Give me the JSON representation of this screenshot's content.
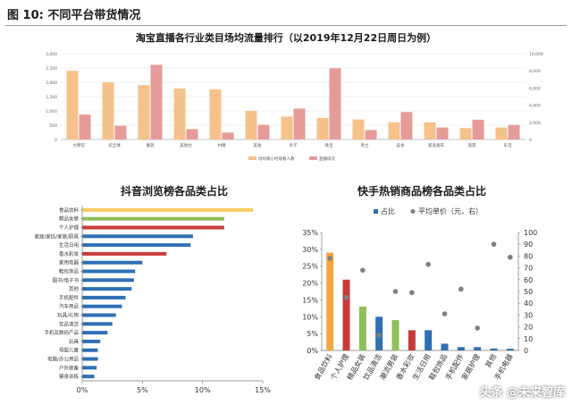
{
  "figure": {
    "title": "图 10:  不同平台带货情况",
    "watermark": "头条 @未来智库"
  },
  "chart_data": [
    {
      "type": "bar",
      "title": "淘宝直播各行业类目场均流量排行（以2019年12月22日周日为例）",
      "categories": [
        "大牌馆",
        "买全球",
        "服装",
        "美妆达",
        "村播",
        "美妆",
        "亲子",
        "珠宝",
        "男士",
        "美食",
        "新品发布",
        "旅游",
        "乐活"
      ],
      "series": [
        {
          "name": "场均每小时观看人数",
          "axis": "left",
          "color": "#f6c28b",
          "values": [
            2400,
            2000,
            1900,
            1780,
            1750,
            1000,
            800,
            750,
            700,
            600,
            600,
            400,
            420
          ]
        },
        {
          "name": "直播场次",
          "axis": "right",
          "color": "#e59b98",
          "values": [
            2900,
            1600,
            8700,
            1200,
            800,
            1700,
            3600,
            8300,
            1100,
            3200,
            1400,
            2300,
            1700
          ]
        }
      ],
      "left_axis": {
        "ylim": [
          0,
          3000
        ],
        "ticks": [
          "0",
          "500",
          "1,000",
          "1,500",
          "2,000",
          "2,500",
          "3,000"
        ]
      },
      "right_axis": {
        "ylim": [
          0,
          10000
        ],
        "ticks": [
          "0",
          "2,000",
          "4,000",
          "6,000",
          "8,000",
          "10,000"
        ]
      },
      "legend_position": "bottom"
    },
    {
      "type": "bar",
      "orientation": "horizontal",
      "title": "抖音浏览榜各品类占比",
      "categories": [
        "食品饮料",
        "精品女装",
        "个人护理",
        "家居/家纺/家装/厨具",
        "生活日用",
        "香水彩妆",
        "家用电器",
        "鞋包饰品",
        "图书/电子书",
        "其他",
        "手机配件",
        "汽车用品",
        "玩具/礼物",
        "饮品清洁",
        "手机及数码产品",
        "玩具",
        "母婴儿童",
        "电脑/办公用品",
        "户外装备",
        "健身训练"
      ],
      "values": [
        14.2,
        11.8,
        11.8,
        9.2,
        9.0,
        7.0,
        5.0,
        4.4,
        4.3,
        4.1,
        3.6,
        3.3,
        2.8,
        2.5,
        2.1,
        1.5,
        1.3,
        1.3,
        1.2,
        1.0
      ],
      "colors": [
        "#f3cd60",
        "#8ebf5a",
        "#c83a3a",
        "#2e6fb5",
        "#2e6fb5",
        "#c83a3a",
        "#2e6fb5",
        "#2e6fb5",
        "#2e6fb5",
        "#2e6fb5",
        "#2e6fb5",
        "#2e6fb5",
        "#2e6fb5",
        "#2e6fb5",
        "#2e6fb5",
        "#2e6fb5",
        "#2e6fb5",
        "#2e6fb5",
        "#2e6fb5",
        "#2e6fb5"
      ],
      "xlim": [
        0,
        15
      ],
      "x_ticks": [
        "0%",
        "5%",
        "10%",
        "15%"
      ]
    },
    {
      "type": "bar",
      "title": "快手热销商品榜各品类占比",
      "categories": [
        "食品饮料",
        "个人护理",
        "精品女装",
        "饮品清洁",
        "潮流男装",
        "香水彩妆",
        "生活日用",
        "鞋包饰品",
        "手机配件",
        "家居护理",
        "其他",
        "手机电器"
      ],
      "series": [
        {
          "name": "占比",
          "axis": "left",
          "values": [
            29.0,
            21.0,
            13.0,
            10.0,
            9.0,
            6.0,
            6.0,
            2.0,
            1.0,
            1.0,
            0.6,
            0.5
          ],
          "colors": [
            "#f2a944",
            "#c83a3a",
            "#8ebf5a",
            "#2e6fb5",
            "#8ebf5a",
            "#c83a3a",
            "#2e6fb5",
            "#2e6fb5",
            "#2e6fb5",
            "#2e6fb5",
            "#2e6fb5",
            "#2e6fb5"
          ]
        },
        {
          "name": "平均单价（元，右）",
          "axis": "right",
          "type": "scatter",
          "color": "#7f7f7f",
          "values": [
            78,
            45,
            68,
            13,
            50,
            49,
            73,
            31,
            52,
            19,
            90,
            79
          ]
        }
      ],
      "left_axis": {
        "ylim": [
          0,
          35
        ],
        "ticks": [
          "0%",
          "5%",
          "10%",
          "15%",
          "20%",
          "25%",
          "30%",
          "35%"
        ]
      },
      "right_axis": {
        "ylim": [
          0,
          100
        ],
        "ticks": [
          "0",
          "10",
          "20",
          "30",
          "40",
          "50",
          "60",
          "70",
          "80",
          "90",
          "100"
        ]
      },
      "legend_position": "top"
    }
  ]
}
